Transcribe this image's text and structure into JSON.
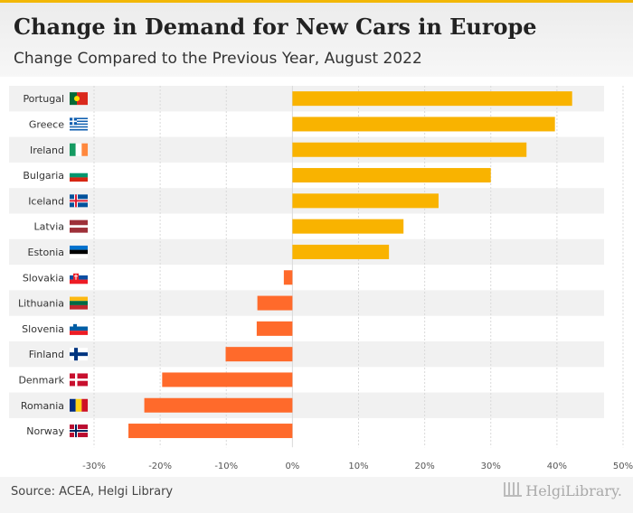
{
  "title": "Change in Demand for New Cars in Europe",
  "subtitle": "Change Compared to the Previous Year, August 2022",
  "source": "Source: ACEA, Helgi Library",
  "brand": "HelgiLibrary.",
  "colors": {
    "positive": "#f9b300",
    "negative": "#ff6a2b",
    "accent": "#f2b705",
    "stripe": "#f1f1f1"
  },
  "chart_data": {
    "type": "bar",
    "orientation": "horizontal",
    "categories": [
      "Portugal",
      "Greece",
      "Ireland",
      "Bulgaria",
      "Iceland",
      "Latvia",
      "Estonia",
      "Slovakia",
      "Lithuania",
      "Slovenia",
      "Finland",
      "Denmark",
      "Romania",
      "Norway"
    ],
    "values": [
      42.3,
      39.7,
      35.4,
      30.0,
      22.1,
      16.8,
      14.6,
      -1.3,
      -5.3,
      -5.4,
      -10.1,
      -19.7,
      -22.4,
      -24.8
    ],
    "xlim": [
      -30,
      50
    ],
    "xticks": [
      -30,
      -20,
      -10,
      0,
      10,
      20,
      30,
      40,
      50
    ],
    "tick_format": "{v}%",
    "grid": true,
    "flags": [
      "portugal-flag-icon",
      "greece-flag-icon",
      "ireland-flag-icon",
      "bulgaria-flag-icon",
      "iceland-flag-icon",
      "latvia-flag-icon",
      "estonia-flag-icon",
      "slovakia-flag-icon",
      "lithuania-flag-icon",
      "slovenia-flag-icon",
      "finland-flag-icon",
      "denmark-flag-icon",
      "romania-flag-icon",
      "norway-flag-icon"
    ]
  }
}
